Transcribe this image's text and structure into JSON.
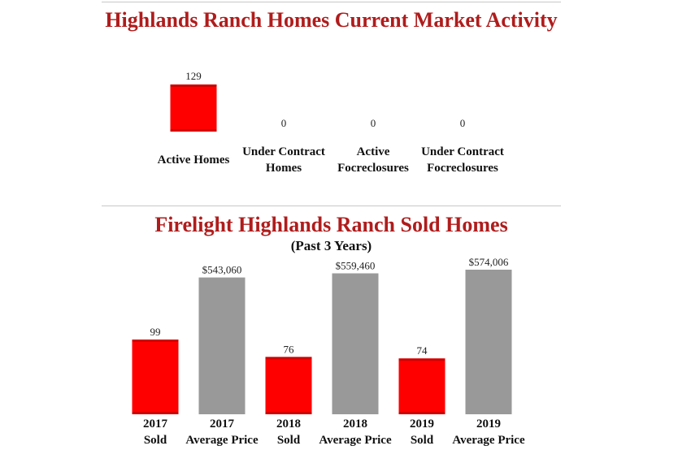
{
  "chart_data": [
    {
      "type": "bar",
      "title": "Highlands Ranch Homes Current Market Activity",
      "categories": [
        [
          "Active Homes"
        ],
        [
          "Under Contract",
          "Homes"
        ],
        [
          "Active",
          "Focreclosures"
        ],
        [
          "Under Contract",
          "Focreclosures"
        ]
      ],
      "values": [
        129,
        0,
        0,
        0
      ],
      "value_labels": [
        "129",
        "0",
        "0",
        "0"
      ],
      "colors": [
        "#ff0000",
        "#ff0000",
        "#ff0000",
        "#ff0000"
      ]
    },
    {
      "type": "bar",
      "title": "Firelight Highlands Ranch Sold Homes",
      "subtitle": "(Past 3 Years)",
      "categories": [
        [
          "2017",
          "Sold"
        ],
        [
          "2017",
          "Average Price"
        ],
        [
          "2018",
          "Sold"
        ],
        [
          "2018",
          "Average Price"
        ],
        [
          "2019",
          "Sold"
        ],
        [
          "2019",
          "Average Price"
        ]
      ],
      "series": [
        {
          "values": [
            99,
            null,
            76,
            null,
            74,
            null
          ]
        },
        {
          "values": [
            null,
            543060,
            null,
            559460,
            null,
            574006
          ]
        }
      ],
      "value_labels": [
        "99",
        "$543,060",
        "76",
        "$559,460",
        "74",
        "$574,006"
      ],
      "colors": {
        "count": "#ff0000",
        "price": "#999999"
      }
    }
  ]
}
